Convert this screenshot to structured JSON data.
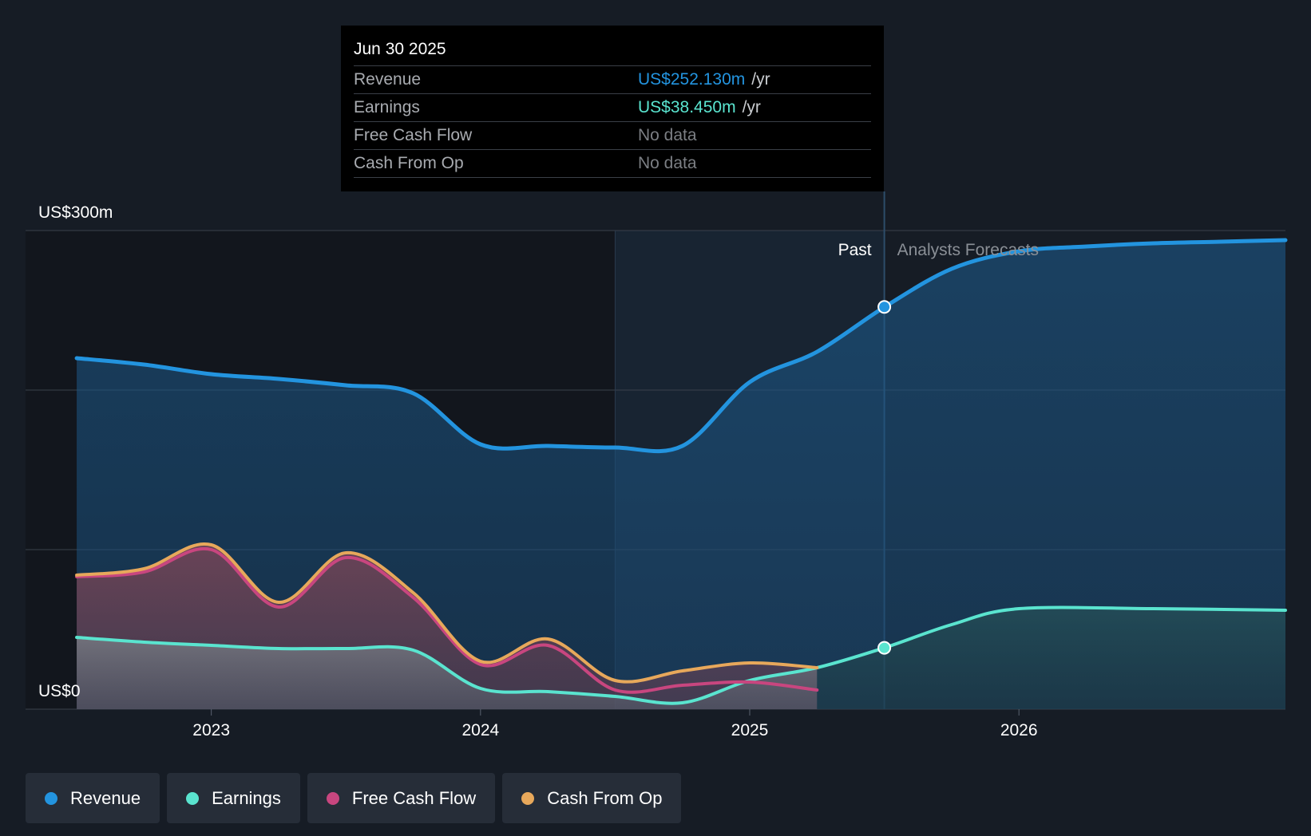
{
  "tooltip": {
    "date": "Jun 30 2025",
    "rows": [
      {
        "label": "Revenue",
        "value": "US$252.130m",
        "unit": "/yr",
        "color": "#2394df"
      },
      {
        "label": "Earnings",
        "value": "US$38.450m",
        "unit": "/yr",
        "color": "#5ae4cf"
      },
      {
        "label": "Free Cash Flow",
        "value": "No data",
        "unit": "",
        "color": "#7b7e83"
      },
      {
        "label": "Cash From Op",
        "value": "No data",
        "unit": "",
        "color": "#7b7e83"
      }
    ]
  },
  "chart_data": {
    "type": "area",
    "y_top_label": "US$300m",
    "y_bottom_label": "US$0",
    "ylim": [
      0,
      300
    ],
    "x_ticks": [
      {
        "label": "2023",
        "x": 2023.0
      },
      {
        "label": "2024",
        "x": 2024.0
      },
      {
        "label": "2025",
        "x": 2025.0
      },
      {
        "label": "2026",
        "x": 2026.0
      }
    ],
    "xlim": [
      2022.31,
      2026.99
    ],
    "past_label": "Past",
    "forecast_label": "Analysts Forecasts",
    "past_end": 2025.5,
    "highlight_start": 2024.5,
    "grid": true,
    "legend_position": "bottom-left",
    "series": [
      {
        "name": "Revenue",
        "color": "#2394df",
        "points": [
          [
            2022.5,
            220
          ],
          [
            2022.75,
            216
          ],
          [
            2023.0,
            210
          ],
          [
            2023.25,
            207
          ],
          [
            2023.5,
            203
          ],
          [
            2023.75,
            198
          ],
          [
            2024.0,
            166
          ],
          [
            2024.25,
            165
          ],
          [
            2024.5,
            164
          ],
          [
            2024.75,
            165
          ],
          [
            2025.0,
            205
          ],
          [
            2025.25,
            224
          ],
          [
            2025.5,
            252
          ],
          [
            2025.75,
            276
          ],
          [
            2026.0,
            287
          ],
          [
            2026.25,
            290
          ],
          [
            2026.5,
            292
          ],
          [
            2026.75,
            293
          ],
          [
            2026.99,
            294
          ]
        ]
      },
      {
        "name": "Earnings",
        "color": "#5ae4cf",
        "points": [
          [
            2022.5,
            45
          ],
          [
            2022.75,
            42
          ],
          [
            2023.0,
            40
          ],
          [
            2023.25,
            38
          ],
          [
            2023.5,
            38
          ],
          [
            2023.75,
            37
          ],
          [
            2024.0,
            13
          ],
          [
            2024.25,
            11
          ],
          [
            2024.5,
            8
          ],
          [
            2024.75,
            4
          ],
          [
            2025.0,
            18
          ],
          [
            2025.25,
            26
          ],
          [
            2025.5,
            38.45
          ],
          [
            2025.75,
            53
          ],
          [
            2026.0,
            63
          ],
          [
            2026.5,
            63
          ],
          [
            2026.99,
            62
          ]
        ]
      },
      {
        "name": "Free Cash Flow",
        "color": "#c8467f",
        "points": [
          [
            2022.5,
            83
          ],
          [
            2022.75,
            86
          ],
          [
            2023.0,
            100
          ],
          [
            2023.25,
            64
          ],
          [
            2023.5,
            95
          ],
          [
            2023.75,
            70
          ],
          [
            2024.0,
            28
          ],
          [
            2024.25,
            40
          ],
          [
            2024.5,
            12
          ],
          [
            2024.75,
            15
          ],
          [
            2025.0,
            17
          ],
          [
            2025.25,
            12
          ]
        ]
      },
      {
        "name": "Cash From Op",
        "color": "#e7a85b",
        "points": [
          [
            2022.5,
            84
          ],
          [
            2022.75,
            88
          ],
          [
            2023.0,
            103
          ],
          [
            2023.25,
            67
          ],
          [
            2023.5,
            98
          ],
          [
            2023.75,
            73
          ],
          [
            2024.0,
            30
          ],
          [
            2024.25,
            44
          ],
          [
            2024.5,
            18
          ],
          [
            2024.75,
            24
          ],
          [
            2025.0,
            29
          ],
          [
            2025.25,
            26
          ]
        ]
      }
    ],
    "markers": [
      {
        "series": "Revenue",
        "x": 2025.5,
        "y": 252.13
      },
      {
        "series": "Earnings",
        "x": 2025.5,
        "y": 38.45
      }
    ]
  },
  "legend": [
    {
      "label": "Revenue",
      "color": "#2394df"
    },
    {
      "label": "Earnings",
      "color": "#5ae4cf"
    },
    {
      "label": "Free Cash Flow",
      "color": "#c8467f"
    },
    {
      "label": "Cash From Op",
      "color": "#e7a85b"
    }
  ]
}
